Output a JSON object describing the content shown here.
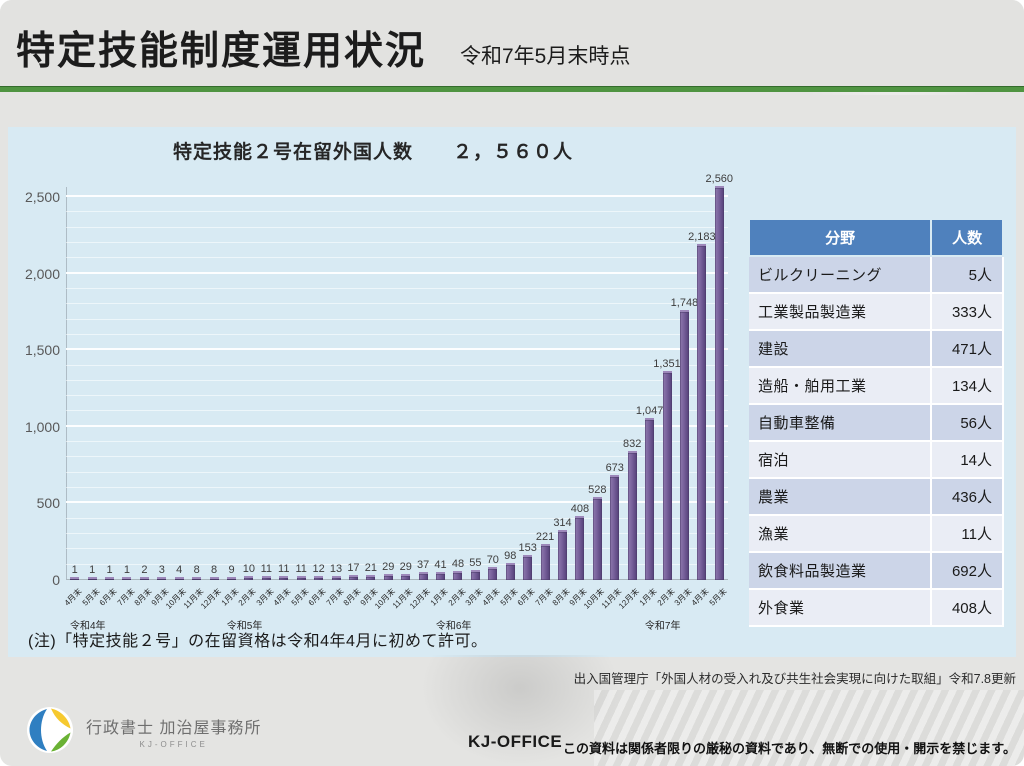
{
  "header": {
    "title": "特定技能制度運用状況",
    "subtitle": "令和7年5月末時点"
  },
  "chart_panel": {
    "title": "特定技能２号在留外国人数　　２，５６０人",
    "note": "(注)「特定技能２号」の在留資格は令和4年4月に初めて許可。"
  },
  "chart_data": {
    "type": "bar",
    "title": "特定技能２号在留外国人数　２，５６０人",
    "xlabel": "",
    "ylabel": "",
    "ylim": [
      0,
      2600
    ],
    "grid": true,
    "legend": false,
    "bar_color": "#6a5291",
    "plot_bg": "#d8eaf3",
    "y_ticks": [
      {
        "value": 0,
        "label": "0"
      },
      {
        "value": 500,
        "label": "500"
      },
      {
        "value": 1000,
        "label": "1,000"
      },
      {
        "value": 1500,
        "label": "1,500"
      },
      {
        "value": 2000,
        "label": "2,000"
      },
      {
        "value": 2500,
        "label": "2,500"
      }
    ],
    "minor_grid_step": 100,
    "major_grid_step": 500,
    "categories": [
      "4月末",
      "5月末",
      "6月末",
      "7月末",
      "8月末",
      "9月末",
      "10月末",
      "11月末",
      "12月末",
      "1月末",
      "2月末",
      "3月末",
      "4月末",
      "5月末",
      "6月末",
      "7月末",
      "8月末",
      "9月末",
      "10月末",
      "11月末",
      "12月末",
      "1月末",
      "2月末",
      "3月末",
      "4月末",
      "5月末",
      "6月末",
      "7月末",
      "8月末",
      "9月末",
      "10月末",
      "11月末",
      "12月末",
      "1月末",
      "2月末",
      "3月末",
      "4月末",
      "5月末"
    ],
    "values": [
      1,
      1,
      1,
      1,
      2,
      3,
      4,
      8,
      8,
      9,
      10,
      11,
      11,
      11,
      12,
      13,
      17,
      21,
      29,
      29,
      37,
      41,
      48,
      55,
      70,
      98,
      153,
      221,
      314,
      408,
      528,
      673,
      832,
      1047,
      1351,
      1748,
      2183,
      2560
    ],
    "value_labels": [
      "1",
      "1",
      "1",
      "1",
      "2",
      "3",
      "4",
      "8",
      "8",
      "9",
      "10",
      "11",
      "11",
      "11",
      "12",
      "13",
      "17",
      "21",
      "29",
      "29",
      "37",
      "41",
      "48",
      "55",
      "70",
      "98",
      "153",
      "221",
      "314",
      "408",
      "528",
      "673",
      "832",
      "1,047",
      "1,351",
      "1,748",
      "2,183",
      "2,560"
    ],
    "year_groups": [
      {
        "label": "令和4年",
        "start": 0,
        "count": 9
      },
      {
        "label": "令和5年",
        "start": 9,
        "count": 12
      },
      {
        "label": "令和6年",
        "start": 21,
        "count": 12
      },
      {
        "label": "令和7年",
        "start": 33,
        "count": 5
      }
    ]
  },
  "table": {
    "headers": [
      "分野",
      "人数"
    ],
    "rows": [
      {
        "category": "ビルクリーニング",
        "count": "5人"
      },
      {
        "category": "工業製品製造業",
        "count": "333人"
      },
      {
        "category": "建設",
        "count": "471人"
      },
      {
        "category": "造船・舶用工業",
        "count": "134人"
      },
      {
        "category": "自動車整備",
        "count": "56人"
      },
      {
        "category": "宿泊",
        "count": "14人"
      },
      {
        "category": "農業",
        "count": "436人"
      },
      {
        "category": "漁業",
        "count": "11人"
      },
      {
        "category": "飲食料品製造業",
        "count": "692人"
      },
      {
        "category": "外食業",
        "count": "408人"
      }
    ]
  },
  "source": "出入国管理庁「外国人材の受入れ及び共生社会実現に向けた取組」令和7.8更新",
  "footer": {
    "office_name": "行政書士 加治屋事務所",
    "office_sub": "KJ-OFFICE",
    "brand": "KJ-OFFICE",
    "confidential": "この資料は関係者限りの厳秘の資料であり、無断での使用・開示を禁じます。"
  },
  "colors": {
    "accent_green": "#4f9441",
    "table_header_blue": "#4f81bd",
    "bar_purple": "#6a5291",
    "panel_blue": "#d8eaf3"
  }
}
